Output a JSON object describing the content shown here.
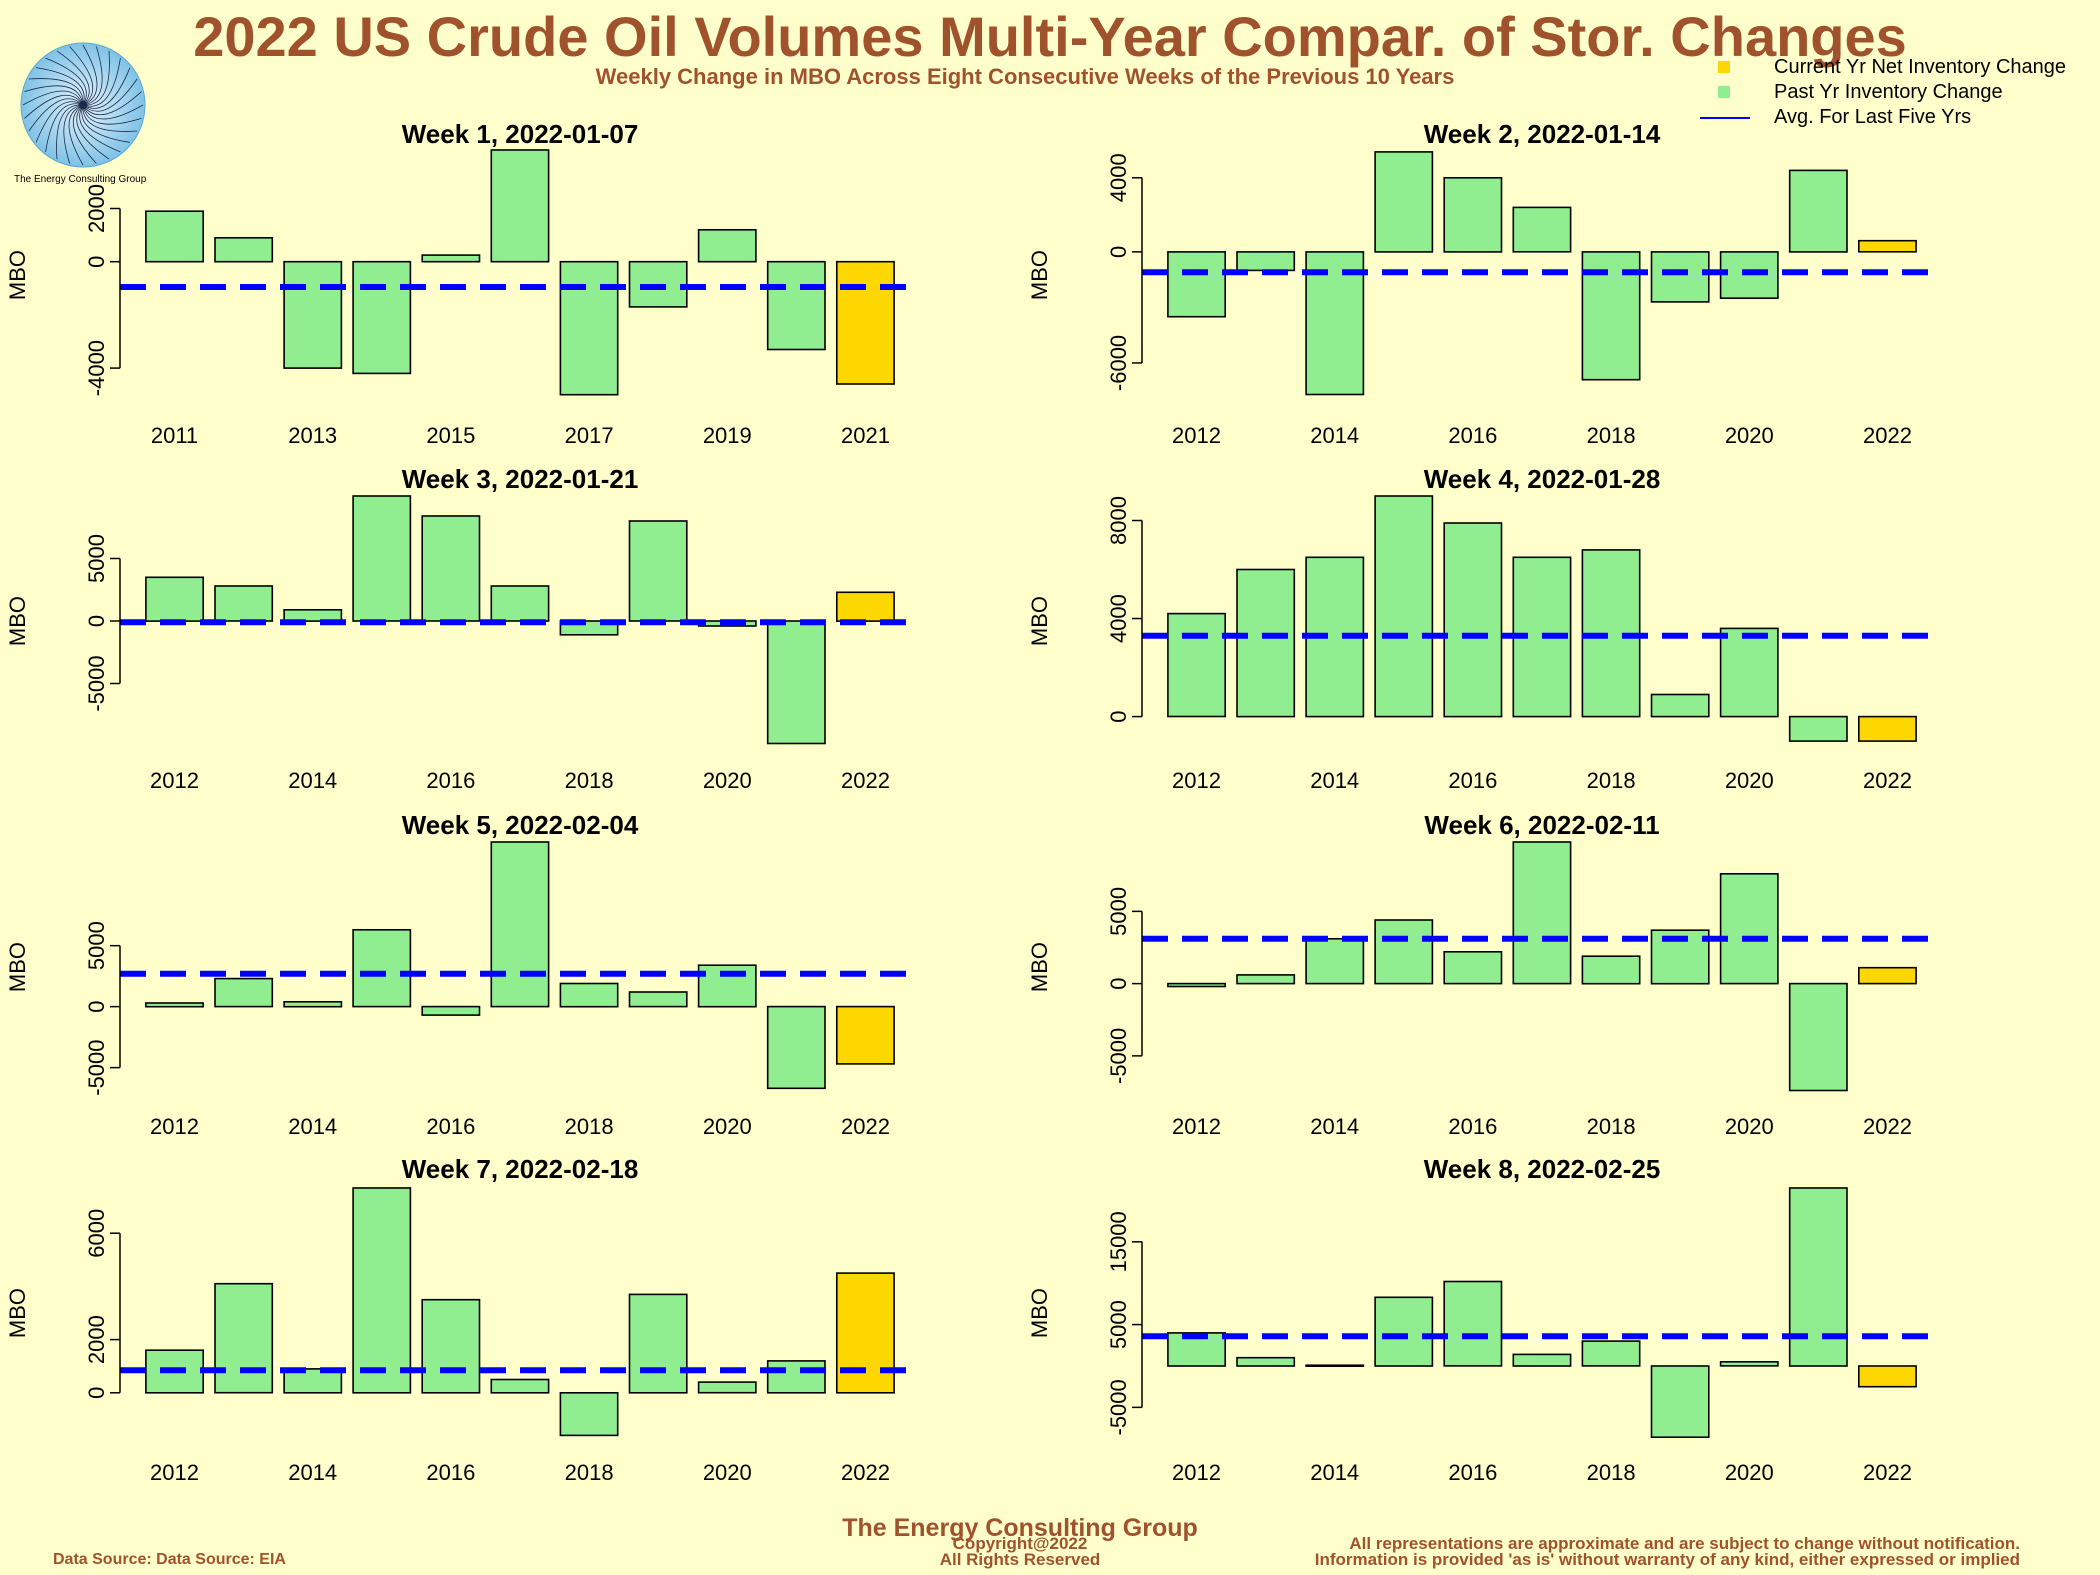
{
  "header": {
    "title": "2022 US Crude Oil Volumes Multi-Year Compar. of Stor. Changes",
    "subtitle": "Weekly Change in MBO Across Eight Consecutive Weeks of the Previous 10 Years"
  },
  "logo": {
    "text": "The Energy Consulting Group"
  },
  "legend": {
    "items": [
      {
        "label": "Current Yr Net Inventory Change",
        "kind": "swatch",
        "color": "#FFD700"
      },
      {
        "label": "Past Yr Inventory Change",
        "kind": "swatch",
        "color": "#90EE90"
      },
      {
        "label": "Avg. For Last Five Yrs",
        "kind": "line",
        "color": "#0000FF"
      }
    ]
  },
  "footer": {
    "company": "The Energy Consulting Group",
    "source": "Data Source: Data Source: EIA",
    "copyright_line1": "Copyright@2022",
    "copyright_line2": "All Rights Reserved",
    "disclaimer_line1": "All representations are approximate and are subject to change without notification.",
    "disclaimer_line2": "Information is provided 'as is' without warranty of any kind, either expressed or implied"
  },
  "colors": {
    "past": "#90EE90",
    "current": "#FFD700",
    "avg": "#0000FF"
  },
  "chart_data": [
    {
      "type": "bar",
      "title": "Week 1, 2022-01-07",
      "ylabel": "MBO",
      "categories": [
        "2011",
        "2012",
        "2013",
        "2014",
        "2015",
        "2016",
        "2017",
        "2018",
        "2019",
        "2020",
        "2021"
      ],
      "tick_labels": [
        "2011",
        "2013",
        "2015",
        "2017",
        "2019",
        "2021"
      ],
      "values": [
        1900,
        900,
        -4000,
        -4200,
        250,
        4200,
        -5000,
        -1700,
        1200,
        -3300,
        -4600
      ],
      "current_index": 10,
      "avg": -950,
      "ylim": [
        -5200,
        4200
      ],
      "yticks": [
        -4000,
        0,
        2000
      ],
      "ytick_labels": [
        "-4000",
        "0",
        "2000"
      ]
    },
    {
      "type": "bar",
      "title": "Week 2, 2022-01-14",
      "ylabel": "MBO",
      "categories": [
        "2012",
        "2013",
        "2014",
        "2015",
        "2016",
        "2017",
        "2018",
        "2019",
        "2020",
        "2021",
        "2022"
      ],
      "tick_labels": [
        "2012",
        "2014",
        "2016",
        "2018",
        "2020",
        "2022"
      ],
      "values": [
        -3500,
        -1000,
        -7700,
        5400,
        4000,
        2400,
        -6900,
        -2700,
        -2500,
        4400,
        600
      ],
      "current_index": 10,
      "avg": -1100,
      "ylim": [
        -8000,
        5500
      ],
      "yticks": [
        -6000,
        0,
        4000
      ],
      "ytick_labels": [
        "-6000",
        "0",
        "4000"
      ]
    },
    {
      "type": "bar",
      "title": "Week 3, 2022-01-21",
      "ylabel": "MBO",
      "categories": [
        "2012",
        "2013",
        "2014",
        "2015",
        "2016",
        "2017",
        "2018",
        "2019",
        "2020",
        "2021",
        "2022"
      ],
      "tick_labels": [
        "2012",
        "2014",
        "2016",
        "2018",
        "2020",
        "2022"
      ],
      "values": [
        3500,
        2800,
        900,
        10000,
        8400,
        2800,
        -1100,
        8000,
        -400,
        -9800,
        2300
      ],
      "current_index": 10,
      "avg": -100,
      "ylim": [
        -10000,
        10000
      ],
      "yticks": [
        -5000,
        0,
        5000
      ],
      "ytick_labels": [
        "-5000",
        "0",
        "5000"
      ]
    },
    {
      "type": "bar",
      "title": "Week 4, 2022-01-28",
      "ylabel": "MBO",
      "categories": [
        "2012",
        "2013",
        "2014",
        "2015",
        "2016",
        "2017",
        "2018",
        "2019",
        "2020",
        "2021",
        "2022"
      ],
      "tick_labels": [
        "2012",
        "2014",
        "2016",
        "2018",
        "2020",
        "2022"
      ],
      "values": [
        4200,
        6000,
        6500,
        9000,
        7900,
        6500,
        6800,
        900,
        3600,
        -1000,
        -1000
      ],
      "current_index": 10,
      "avg": 3300,
      "ylim": [
        -1200,
        9000
      ],
      "yticks": [
        0,
        4000,
        8000
      ],
      "ytick_labels": [
        "0",
        "4000",
        "8000"
      ]
    },
    {
      "type": "bar",
      "title": "Week 5, 2022-02-04",
      "ylabel": "MBO",
      "categories": [
        "2012",
        "2013",
        "2014",
        "2015",
        "2016",
        "2017",
        "2018",
        "2019",
        "2020",
        "2021",
        "2022"
      ],
      "tick_labels": [
        "2012",
        "2014",
        "2016",
        "2018",
        "2020",
        "2022"
      ],
      "values": [
        300,
        2300,
        400,
        6300,
        -700,
        13500,
        1900,
        1200,
        3400,
        -6700,
        -4700
      ],
      "current_index": 10,
      "avg": 2700,
      "ylim": [
        -7000,
        13500
      ],
      "yticks": [
        -5000,
        0,
        5000
      ],
      "ytick_labels": [
        "-5000",
        "0",
        "5000"
      ]
    },
    {
      "type": "bar",
      "title": "Week 6, 2022-02-11",
      "ylabel": "MBO",
      "categories": [
        "2012",
        "2013",
        "2014",
        "2015",
        "2016",
        "2017",
        "2018",
        "2019",
        "2020",
        "2021",
        "2022"
      ],
      "tick_labels": [
        "2012",
        "2014",
        "2016",
        "2018",
        "2020",
        "2022"
      ],
      "values": [
        -200,
        600,
        3100,
        4400,
        2200,
        9800,
        1900,
        3700,
        7600,
        -7400,
        1100
      ],
      "current_index": 10,
      "avg": 3100,
      "ylim": [
        -7500,
        9800
      ],
      "yticks": [
        -5000,
        0,
        5000
      ],
      "ytick_labels": [
        "-5000",
        "0",
        "5000"
      ]
    },
    {
      "type": "bar",
      "title": "Week 7, 2022-02-18",
      "ylabel": "MBO",
      "categories": [
        "2012",
        "2013",
        "2014",
        "2015",
        "2016",
        "2017",
        "2018",
        "2019",
        "2020",
        "2021",
        "2022"
      ],
      "tick_labels": [
        "2012",
        "2014",
        "2016",
        "2018",
        "2020",
        "2022"
      ],
      "values": [
        1600,
        4100,
        900,
        7700,
        3500,
        500,
        -1600,
        3700,
        400,
        1200,
        4500
      ],
      "current_index": 10,
      "avg": 850,
      "ylim": [
        -1700,
        7700
      ],
      "yticks": [
        0,
        2000,
        6000
      ],
      "ytick_labels": [
        "0",
        "2000",
        "6000"
      ]
    },
    {
      "type": "bar",
      "title": "Week 8, 2022-02-25",
      "ylabel": "MBO",
      "categories": [
        "2012",
        "2013",
        "2014",
        "2015",
        "2016",
        "2017",
        "2018",
        "2019",
        "2020",
        "2021",
        "2022"
      ],
      "tick_labels": [
        "2012",
        "2014",
        "2016",
        "2018",
        "2020",
        "2022"
      ],
      "values": [
        4000,
        1000,
        100,
        8300,
        10200,
        1400,
        3000,
        -8600,
        500,
        21500,
        -2500
      ],
      "current_index": 10,
      "avg": 3600,
      "ylim": [
        -8700,
        21500
      ],
      "yticks": [
        -5000,
        5000,
        15000
      ],
      "ytick_labels": [
        "-5000",
        "5000",
        "15000"
      ]
    }
  ]
}
